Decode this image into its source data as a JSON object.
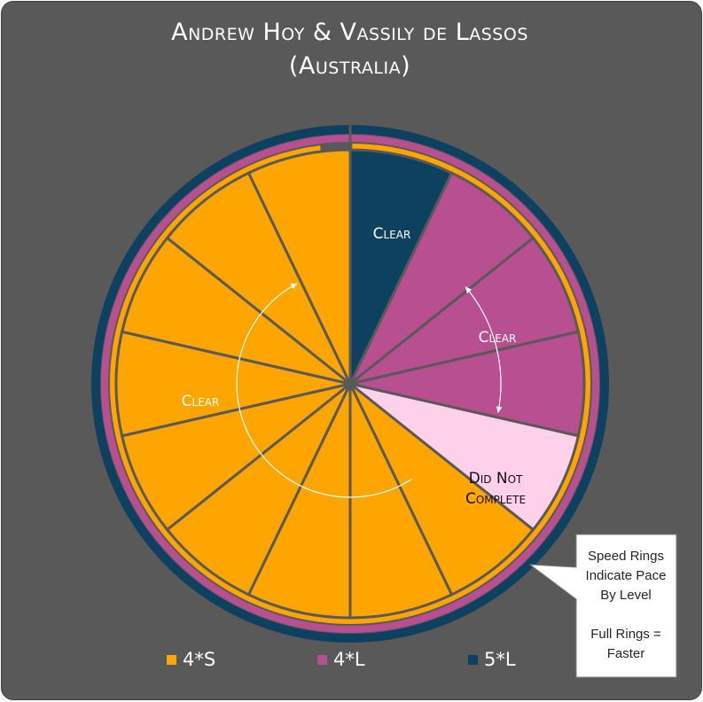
{
  "title": {
    "line1": "Andrew Hoy & Vassily de Lassos",
    "line2": "(Australia)"
  },
  "colors": {
    "4S": "#FFA500",
    "4L": "#B84F91",
    "5L": "#0E4060",
    "incomplete": "#FFD0EA",
    "background": "#595959",
    "divider": "#595959"
  },
  "chart_data": {
    "type": "pie",
    "slices": [
      {
        "level": "5*L",
        "color_key": "5L",
        "value": 1
      },
      {
        "level": "4*L",
        "color_key": "4L",
        "value": 1
      },
      {
        "level": "4*L",
        "color_key": "4L",
        "value": 1
      },
      {
        "level": "4*L",
        "color_key": "4L",
        "value": 1
      },
      {
        "level": "4*L",
        "color_key": "incomplete",
        "value": 1
      },
      {
        "level": "4*S",
        "color_key": "4S",
        "value": 1
      },
      {
        "level": "4*S",
        "color_key": "4S",
        "value": 1
      },
      {
        "level": "4*S",
        "color_key": "4S",
        "value": 1
      },
      {
        "level": "4*S",
        "color_key": "4S",
        "value": 1
      },
      {
        "level": "4*S",
        "color_key": "4S",
        "value": 1
      },
      {
        "level": "4*S",
        "color_key": "4S",
        "value": 1
      },
      {
        "level": "4*S",
        "color_key": "4S",
        "value": 1
      },
      {
        "level": "4*S",
        "color_key": "4S",
        "value": 1
      },
      {
        "level": "4*S",
        "color_key": "4S",
        "value": 1
      }
    ],
    "speed_rings": [
      {
        "level": "5*L",
        "color_key": "5L",
        "fraction": 1.0
      },
      {
        "level": "4*L",
        "color_key": "4L",
        "fraction": 1.0
      },
      {
        "level": "4*S",
        "color_key": "4S",
        "fraction": 0.98
      }
    ],
    "labels": {
      "clear_5L": "Clear",
      "clear_4L": "Clear",
      "clear_4S": "Clear",
      "dnc_line1": "Did Not",
      "dnc_line2": "Complete"
    },
    "legend": [
      {
        "label": "4*S",
        "color_key": "4S"
      },
      {
        "label": "4*L",
        "color_key": "4L"
      },
      {
        "label": "5*L",
        "color_key": "5L"
      }
    ]
  },
  "note": {
    "line1": "Speed Rings",
    "line2": "Indicate Pace",
    "line3": "By Level",
    "line4": "Full Rings =",
    "line5": "Faster"
  }
}
